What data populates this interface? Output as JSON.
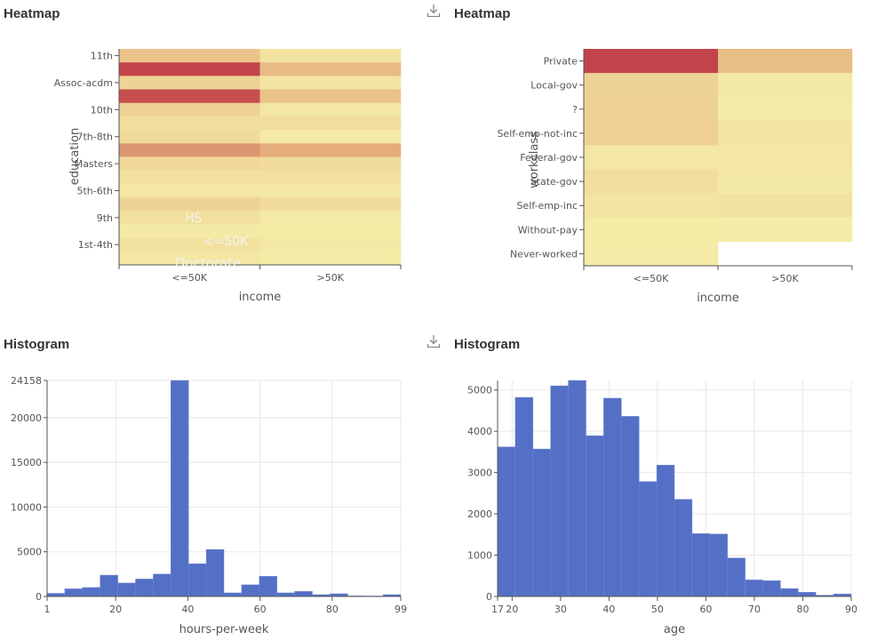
{
  "colors": {
    "heat_low": "#f5efa8",
    "heat_mid": "#e6b07e",
    "heat_high": "#c2434b",
    "bar": "#5470c6",
    "grid": "#e8e8e8",
    "axis": "#555555"
  },
  "icons": {
    "download": "download-icon"
  },
  "chart_data": [
    {
      "type": "heatmap",
      "title": "Heatmap",
      "xlabel": "income",
      "ylabel": "education",
      "x": [
        "<=50K",
        ">50K"
      ],
      "y_tick_labels": [
        "11th",
        "Assoc-acdm",
        "10th",
        "7th-8th",
        "Masters",
        "5th-6th",
        "9th",
        "1st-4th"
      ],
      "faint_overlay_labels": [
        "HS",
        "<=50K",
        "Doctorate"
      ],
      "rows": 16,
      "values": [
        [
          0.34,
          0.1
        ],
        [
          1.0,
          0.42
        ],
        [
          0.22,
          0.08
        ],
        [
          0.95,
          0.36
        ],
        [
          0.24,
          0.06
        ],
        [
          0.14,
          0.14
        ],
        [
          0.17,
          0.04
        ],
        [
          0.62,
          0.52
        ],
        [
          0.18,
          0.16
        ],
        [
          0.11,
          0.11
        ],
        [
          0.06,
          0.06
        ],
        [
          0.22,
          0.15
        ],
        [
          0.12,
          0.04
        ],
        [
          0.04,
          0.03
        ],
        [
          0.1,
          0.05
        ],
        [
          0.06,
          0.02
        ]
      ]
    },
    {
      "type": "heatmap",
      "title": "Heatmap",
      "xlabel": "income",
      "ylabel": "workclass",
      "x": [
        "<=50K",
        ">50K"
      ],
      "y": [
        "Private",
        "Local-gov",
        "?",
        "Self-emp-not-inc",
        "Federal-gov",
        "State-gov",
        "Self-emp-inc",
        "Without-pay",
        "Never-worked"
      ],
      "values": [
        [
          1.0,
          0.4
        ],
        [
          0.22,
          0.05
        ],
        [
          0.23,
          0.04
        ],
        [
          0.25,
          0.08
        ],
        [
          0.06,
          0.06
        ],
        [
          0.14,
          0.05
        ],
        [
          0.08,
          0.1
        ],
        [
          0.03,
          0.02
        ],
        [
          0.02,
          null
        ]
      ]
    },
    {
      "type": "bar",
      "subtype": "histogram",
      "title": "Histogram",
      "xlabel": "hours-per-week",
      "ylabel": "",
      "x_ticks": [
        1,
        20,
        40,
        60,
        80,
        99
      ],
      "y_ticks": [
        0,
        5000,
        10000,
        15000,
        20000,
        24158
      ],
      "xlim": [
        1,
        99
      ],
      "ylim": [
        0,
        24158
      ],
      "bin_edges": [
        1,
        5.9,
        10.8,
        15.7,
        20.6,
        25.5,
        30.4,
        35.3,
        40.2,
        45.1,
        50,
        54.9,
        59.8,
        64.7,
        69.6,
        74.5,
        79.4,
        84.3,
        89.2,
        94.1,
        99
      ],
      "values": [
        350,
        850,
        1000,
        2380,
        1500,
        1950,
        2500,
        24158,
        3650,
        5250,
        400,
        1300,
        2250,
        400,
        560,
        200,
        300,
        60,
        50,
        200
      ]
    },
    {
      "type": "bar",
      "subtype": "histogram",
      "title": "Histogram",
      "xlabel": "age",
      "ylabel": "",
      "x_ticks": [
        17,
        20,
        30,
        40,
        50,
        60,
        70,
        80,
        90
      ],
      "y_ticks": [
        0,
        1000,
        2000,
        3000,
        4000,
        5000
      ],
      "xlim": [
        17,
        90
      ],
      "ylim": [
        0,
        5230
      ],
      "bin_edges": [
        17,
        20.65,
        24.3,
        27.95,
        31.6,
        35.25,
        38.9,
        42.55,
        46.2,
        49.85,
        53.5,
        57.15,
        60.8,
        64.45,
        68.1,
        71.75,
        75.4,
        79.05,
        82.7,
        86.35,
        90
      ],
      "values": [
        3620,
        4820,
        3570,
        5100,
        5230,
        3890,
        4800,
        4360,
        2780,
        3180,
        2350,
        1520,
        1510,
        930,
        400,
        380,
        190,
        100,
        30,
        60
      ]
    }
  ]
}
